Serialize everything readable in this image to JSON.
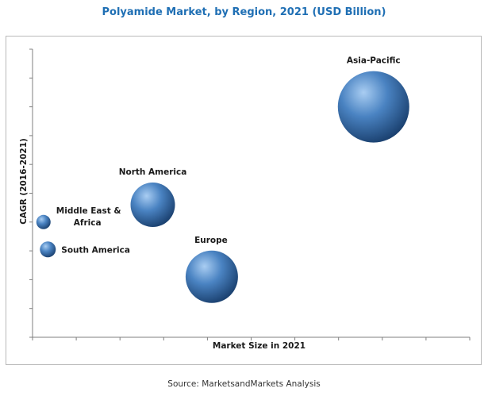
{
  "colors": {
    "title": "#1f6fb4",
    "bubble_light": "#a9cdf2",
    "bubble_mid": "#4a83c2",
    "bubble_dark": "#183d6b",
    "axis": "#7f7f7f"
  },
  "source": "Source: MarketsandMarkets Analysis",
  "chart_data": {
    "type": "bubble",
    "title": "Polyamide Market, by Region, 2021 (USD Billion)",
    "xlabel": "Market Size in 2021",
    "ylabel": "CAGR (2016-2021)",
    "x_range": [
      0,
      10
    ],
    "y_range": [
      0,
      10
    ],
    "x_ticks": 10,
    "y_ticks": 10,
    "grid": false,
    "note": "Axes carry no numeric tick labels; values are relative positions in axis units.",
    "points": [
      {
        "label": "Asia-Pacific",
        "label_lines": [
          "Asia-Pacific"
        ],
        "x": 7.8,
        "y": 8.0,
        "size": 4.5,
        "label_pos": "above"
      },
      {
        "label": "North America",
        "label_lines": [
          "North America"
        ],
        "x": 2.75,
        "y": 4.6,
        "size": 2.8,
        "label_pos": "above"
      },
      {
        "label": "Europe",
        "label_lines": [
          "Europe"
        ],
        "x": 4.1,
        "y": 2.1,
        "size": 3.3,
        "label_pos": "above"
      },
      {
        "label": "Middle East & Africa",
        "label_lines": [
          "Middle East &",
          "Africa"
        ],
        "x": 0.25,
        "y": 4.0,
        "size": 0.9,
        "label_pos": "right"
      },
      {
        "label": "South America",
        "label_lines": [
          "South America"
        ],
        "x": 0.35,
        "y": 3.05,
        "size": 1.0,
        "label_pos": "right"
      }
    ]
  }
}
